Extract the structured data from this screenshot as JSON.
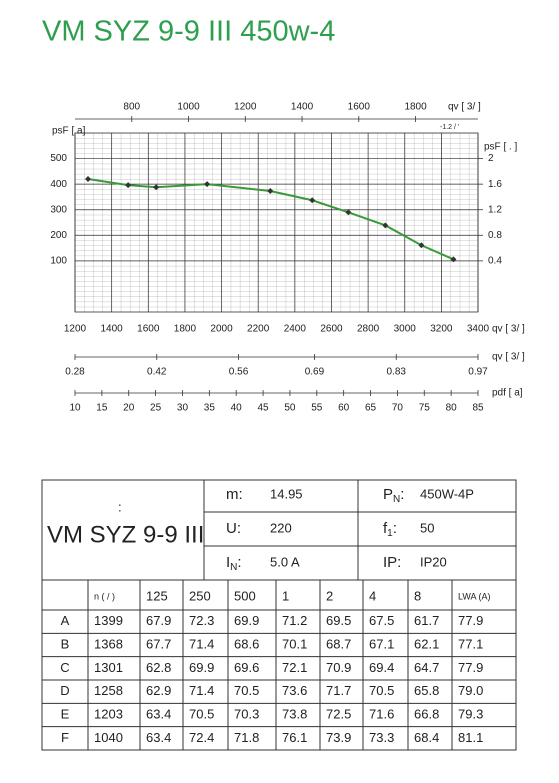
{
  "title": "VM SYZ 9-9 III 450w-4",
  "chart_data": {
    "type": "line",
    "x_label": "qv [ 3/ ]",
    "xlim": [
      1200,
      3400
    ],
    "xticks": [
      1200,
      1400,
      1600,
      1800,
      2000,
      2200,
      2400,
      2600,
      2800,
      3000,
      3200,
      3400
    ],
    "y_label": "psF [ a]",
    "ylim": [
      -100,
      600
    ],
    "yticks": [
      100,
      200,
      300,
      400,
      500
    ],
    "y2_label": "psF [ . ]",
    "y2lim": [
      -0.4,
      2.4
    ],
    "y2ticks": [
      0.4,
      0.8,
      1.2,
      1.6,
      2
    ],
    "grid": true,
    "top_axis": {
      "label": "qv [ 3/ ]",
      "note": "-1.2  /  '",
      "lim": [
        600,
        2020
      ],
      "ticks": [
        800,
        1000,
        1200,
        1400,
        1600,
        1800
      ]
    },
    "flow_axis": {
      "label": "qv [ 3/ ]",
      "lim": [
        0.28,
        0.97
      ],
      "ticks": [
        0.28,
        0.42,
        0.56,
        0.69,
        0.83,
        0.97
      ]
    },
    "pressure_axis": {
      "label": "pdf [ a]",
      "lim": [
        10,
        85
      ],
      "ticks": [
        10,
        15,
        20,
        25,
        30,
        35,
        40,
        45,
        50,
        55,
        60,
        65,
        70,
        75,
        80,
        85
      ]
    },
    "series": [
      {
        "color": "#3a9a3a",
        "x": [
          1271,
          1490,
          1643,
          1921,
          2266,
          2495,
          2692,
          2894,
          3091,
          3266
        ],
        "values": [
          420,
          396,
          388,
          400,
          373,
          337,
          290,
          239,
          161,
          106
        ]
      }
    ]
  },
  "spec": {
    "colon": ":",
    "model": "VM SYZ 9-9 III",
    "fields": [
      [
        {
          "label": "m:",
          "value": "14.95"
        },
        {
          "label": "P",
          "sub": "N",
          "tail": ":",
          "value": "450W-4P"
        }
      ],
      [
        {
          "label": "U:",
          "value": "220"
        },
        {
          "label": "f",
          "sub": "1",
          "tail": ":",
          "value": "50"
        }
      ],
      [
        {
          "label": "I",
          "sub": "N",
          "tail": ":",
          "value": "5.0 A"
        },
        {
          "label": "IP:",
          "value": "IP20"
        }
      ]
    ]
  },
  "noise_table": {
    "header": [
      "n ( / )",
      "125",
      "250",
      "500",
      "1",
      "2",
      "4",
      "8",
      "LWA   (A)"
    ],
    "rows": [
      [
        "A",
        "1399",
        "67.9",
        "72.3",
        "69.9",
        "71.2",
        "69.5",
        "67.5",
        "61.7",
        "77.9"
      ],
      [
        "B",
        "1368",
        "67.7",
        "71.4",
        "68.6",
        "70.1",
        "68.7",
        "67.1",
        "62.1",
        "77.1"
      ],
      [
        "C",
        "1301",
        "62.8",
        "69.9",
        "69.6",
        "72.1",
        "70.9",
        "69.4",
        "64.7",
        "77.9"
      ],
      [
        "D",
        "1258",
        "62.9",
        "71.4",
        "70.5",
        "73.6",
        "71.7",
        "70.5",
        "65.8",
        "79.0"
      ],
      [
        "E",
        "1203",
        "63.4",
        "70.5",
        "70.3",
        "73.8",
        "72.5",
        "71.6",
        "66.8",
        "79.3"
      ],
      [
        "F",
        "1040",
        "63.4",
        "72.4",
        "71.8",
        "76.1",
        "73.9",
        "73.3",
        "68.4",
        "81.1"
      ]
    ]
  }
}
